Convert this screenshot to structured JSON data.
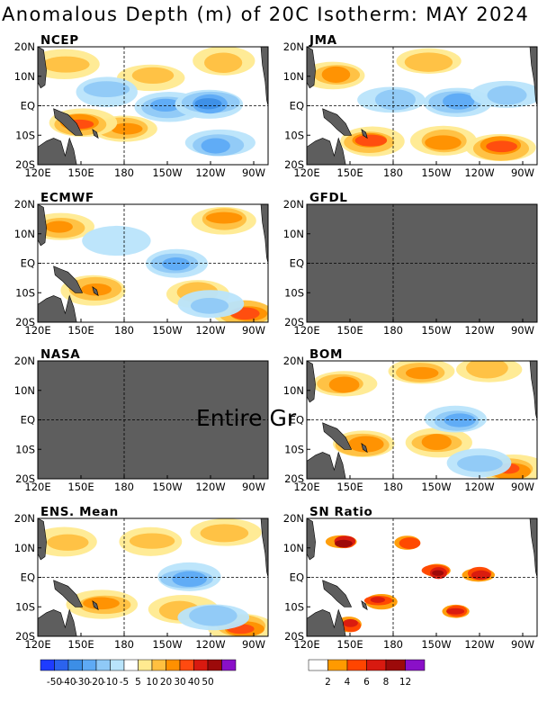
{
  "title": "Anomalous Depth (m) of 20C Isotherm: MAY 2024",
  "x_ticks": [
    "120E",
    "150E",
    "180",
    "150W",
    "120W",
    "90W"
  ],
  "y_ticks": [
    "20N",
    "10N",
    "EQ",
    "10S",
    "20S"
  ],
  "overlay_text": "Entire Gr",
  "colors": {
    "land": "#5e5e5e",
    "missing": "#5e5e5e",
    "ocean": "#ffffff"
  },
  "chart_data": [
    {
      "type": "heatmap",
      "panel": "NCEP",
      "title": "NCEP",
      "xlim": [
        120,
        280
      ],
      "ylim": [
        -20,
        20
      ],
      "status": "data",
      "features": [
        {
          "lon": 140,
          "lat": 14,
          "sign": "pos",
          "strength": 2
        },
        {
          "lon": 200,
          "lat": 10,
          "sign": "pos",
          "strength": 2
        },
        {
          "lon": 250,
          "lat": 15,
          "sign": "pos",
          "strength": 2
        },
        {
          "lon": 180,
          "lat": -8,
          "sign": "pos",
          "strength": 3
        },
        {
          "lon": 150,
          "lat": -6,
          "sign": "pos",
          "strength": 4
        },
        {
          "lon": 210,
          "lat": 0,
          "sign": "neg",
          "strength": 3
        },
        {
          "lon": 240,
          "lat": 1,
          "sign": "neg",
          "strength": 4
        },
        {
          "lon": 245,
          "lat": -13,
          "sign": "neg",
          "strength": 3
        },
        {
          "lon": 168,
          "lat": 5,
          "sign": "neg",
          "strength": 2
        }
      ]
    },
    {
      "type": "heatmap",
      "panel": "JMA",
      "title": "JMA",
      "xlim": [
        120,
        280
      ],
      "ylim": [
        -20,
        20
      ],
      "status": "data",
      "features": [
        {
          "lon": 140,
          "lat": 10,
          "sign": "pos",
          "strength": 3
        },
        {
          "lon": 205,
          "lat": 15,
          "sign": "pos",
          "strength": 2
        },
        {
          "lon": 165,
          "lat": -12,
          "sign": "pos",
          "strength": 4
        },
        {
          "lon": 215,
          "lat": -12,
          "sign": "pos",
          "strength": 3
        },
        {
          "lon": 255,
          "lat": -14,
          "sign": "pos",
          "strength": 4
        },
        {
          "lon": 225,
          "lat": 1,
          "sign": "neg",
          "strength": 3
        },
        {
          "lon": 180,
          "lat": 2,
          "sign": "neg",
          "strength": 2
        },
        {
          "lon": 260,
          "lat": 4,
          "sign": "neg",
          "strength": 2
        }
      ]
    },
    {
      "type": "heatmap",
      "panel": "ECMWF",
      "title": "ECMWF",
      "xlim": [
        120,
        280
      ],
      "ylim": [
        -20,
        20
      ],
      "status": "data",
      "features": [
        {
          "lon": 135,
          "lat": 12,
          "sign": "pos",
          "strength": 3
        },
        {
          "lon": 250,
          "lat": 15,
          "sign": "pos",
          "strength": 3
        },
        {
          "lon": 160,
          "lat": -9,
          "sign": "pos",
          "strength": 3
        },
        {
          "lon": 230,
          "lat": -10,
          "sign": "pos",
          "strength": 2
        },
        {
          "lon": 265,
          "lat": -17,
          "sign": "pos",
          "strength": 4
        },
        {
          "lon": 215,
          "lat": 0,
          "sign": "neg",
          "strength": 3
        },
        {
          "lon": 240,
          "lat": -14,
          "sign": "neg",
          "strength": 2
        },
        {
          "lon": 175,
          "lat": 8,
          "sign": "neg",
          "strength": 1
        }
      ]
    },
    {
      "type": "heatmap",
      "panel": "GFDL",
      "title": "GFDL",
      "xlim": [
        120,
        280
      ],
      "ylim": [
        -20,
        20
      ],
      "status": "missing"
    },
    {
      "type": "heatmap",
      "panel": "NASA",
      "title": "NASA",
      "xlim": [
        120,
        280
      ],
      "ylim": [
        -20,
        20
      ],
      "status": "missing"
    },
    {
      "type": "heatmap",
      "panel": "BOM",
      "title": "BOM",
      "xlim": [
        120,
        280
      ],
      "ylim": [
        -20,
        20
      ],
      "status": "data",
      "features": [
        {
          "lon": 145,
          "lat": 12,
          "sign": "pos",
          "strength": 3
        },
        {
          "lon": 200,
          "lat": 16,
          "sign": "pos",
          "strength": 3
        },
        {
          "lon": 245,
          "lat": 17,
          "sign": "pos",
          "strength": 2
        },
        {
          "lon": 160,
          "lat": -8,
          "sign": "pos",
          "strength": 3
        },
        {
          "lon": 210,
          "lat": -8,
          "sign": "pos",
          "strength": 3
        },
        {
          "lon": 262,
          "lat": -17,
          "sign": "pos",
          "strength": 4
        },
        {
          "lon": 225,
          "lat": 0,
          "sign": "neg",
          "strength": 3
        },
        {
          "lon": 240,
          "lat": -15,
          "sign": "neg",
          "strength": 2
        }
      ]
    },
    {
      "type": "heatmap",
      "panel": "ENS. Mean",
      "title": "ENS. Mean",
      "xlim": [
        120,
        280
      ],
      "ylim": [
        -20,
        20
      ],
      "status": "data",
      "features": [
        {
          "lon": 140,
          "lat": 12,
          "sign": "pos",
          "strength": 2
        },
        {
          "lon": 200,
          "lat": 12,
          "sign": "pos",
          "strength": 2
        },
        {
          "lon": 250,
          "lat": 15,
          "sign": "pos",
          "strength": 2
        },
        {
          "lon": 165,
          "lat": -9,
          "sign": "pos",
          "strength": 3
        },
        {
          "lon": 220,
          "lat": -11,
          "sign": "pos",
          "strength": 2
        },
        {
          "lon": 262,
          "lat": -17,
          "sign": "pos",
          "strength": 4
        },
        {
          "lon": 225,
          "lat": 0,
          "sign": "neg",
          "strength": 3
        },
        {
          "lon": 243,
          "lat": -13,
          "sign": "neg",
          "strength": 2
        }
      ]
    },
    {
      "type": "heatmap",
      "panel": "SN Ratio",
      "title": "SN Ratio",
      "xlim": [
        120,
        280
      ],
      "ylim": [
        -20,
        20
      ],
      "status": "data",
      "features": [
        {
          "lon": 145,
          "lat": 12,
          "sign": "pos",
          "strength": 4
        },
        {
          "lon": 190,
          "lat": 12,
          "sign": "pos",
          "strength": 2
        },
        {
          "lon": 210,
          "lat": 2,
          "sign": "pos",
          "strength": 4
        },
        {
          "lon": 240,
          "lat": 1,
          "sign": "pos",
          "strength": 3
        },
        {
          "lon": 170,
          "lat": -8,
          "sign": "pos",
          "strength": 3
        },
        {
          "lon": 225,
          "lat": -12,
          "sign": "pos",
          "strength": 3
        },
        {
          "lon": 150,
          "lat": -16,
          "sign": "pos",
          "strength": 3
        }
      ]
    }
  ],
  "colorbars": [
    {
      "labels": [
        "-50",
        "-40",
        "-30",
        "-20",
        "-10",
        "-5",
        "5",
        "10",
        "20",
        "30",
        "40",
        "50"
      ],
      "colors": [
        "#1e3cff",
        "#2b63ee",
        "#3c8ee6",
        "#5eaaf5",
        "#8fc9f7",
        "#b9e4fb",
        "#ffffff",
        "#ffea90",
        "#ffc040",
        "#ff9000",
        "#ff4a10",
        "#d81a10",
        "#9c0a0a",
        "#8a10c8"
      ]
    },
    {
      "labels": [
        "2",
        "4",
        "6",
        "8",
        "12"
      ],
      "colors": [
        "#ffffff",
        "#ff9a00",
        "#ff4500",
        "#d81a10",
        "#9c0a0a",
        "#8a10c8"
      ]
    }
  ]
}
